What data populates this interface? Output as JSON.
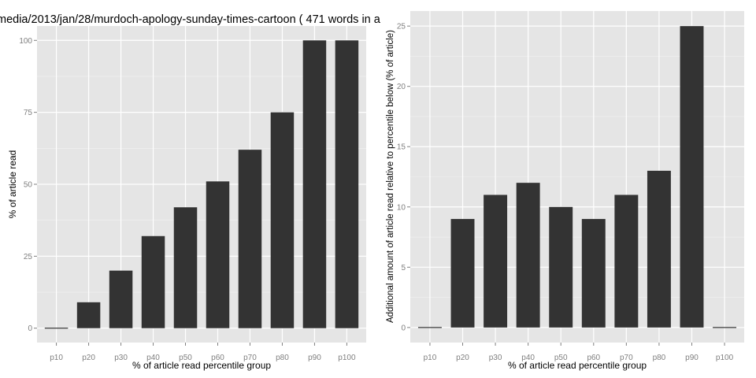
{
  "title": "media/2013/jan/28/murdoch-apology-sunday-times-cartoon ( 471 words in a",
  "colors": {
    "panel_bg": "#e5e5e5",
    "grid_major": "#ffffff",
    "grid_minor": "#f2f2f2",
    "bar": "#333333",
    "tick_text": "#7f7f7f",
    "label_text": "#000000"
  },
  "chart_data": [
    {
      "type": "bar",
      "title": "media/2013/jan/28/murdoch-apology-sunday-times-cartoon ( 471 words in a",
      "xlabel": "% of article read percentile group",
      "ylabel": "% of article read",
      "categories": [
        "p10",
        "p20",
        "p30",
        "p40",
        "p50",
        "p60",
        "p70",
        "p80",
        "p90",
        "p100"
      ],
      "values": [
        0,
        9,
        20,
        32,
        42,
        51,
        62,
        75,
        100,
        100
      ],
      "yticks": [
        0,
        25,
        50,
        75,
        100
      ],
      "ylim": [
        -5,
        105
      ],
      "grid": true
    },
    {
      "type": "bar",
      "title": "",
      "xlabel": "% of article read percentile group",
      "ylabel": "Additional amount of article read relative to percentile below (% of article)",
      "categories": [
        "p10",
        "p20",
        "p30",
        "p40",
        "p50",
        "p60",
        "p70",
        "p80",
        "p90",
        "p100"
      ],
      "values": [
        0,
        9,
        11,
        12,
        10,
        9,
        11,
        13,
        25,
        0
      ],
      "yticks": [
        0,
        5,
        10,
        15,
        20,
        25
      ],
      "ylim": [
        -1.25,
        26.25
      ],
      "grid": true
    }
  ]
}
